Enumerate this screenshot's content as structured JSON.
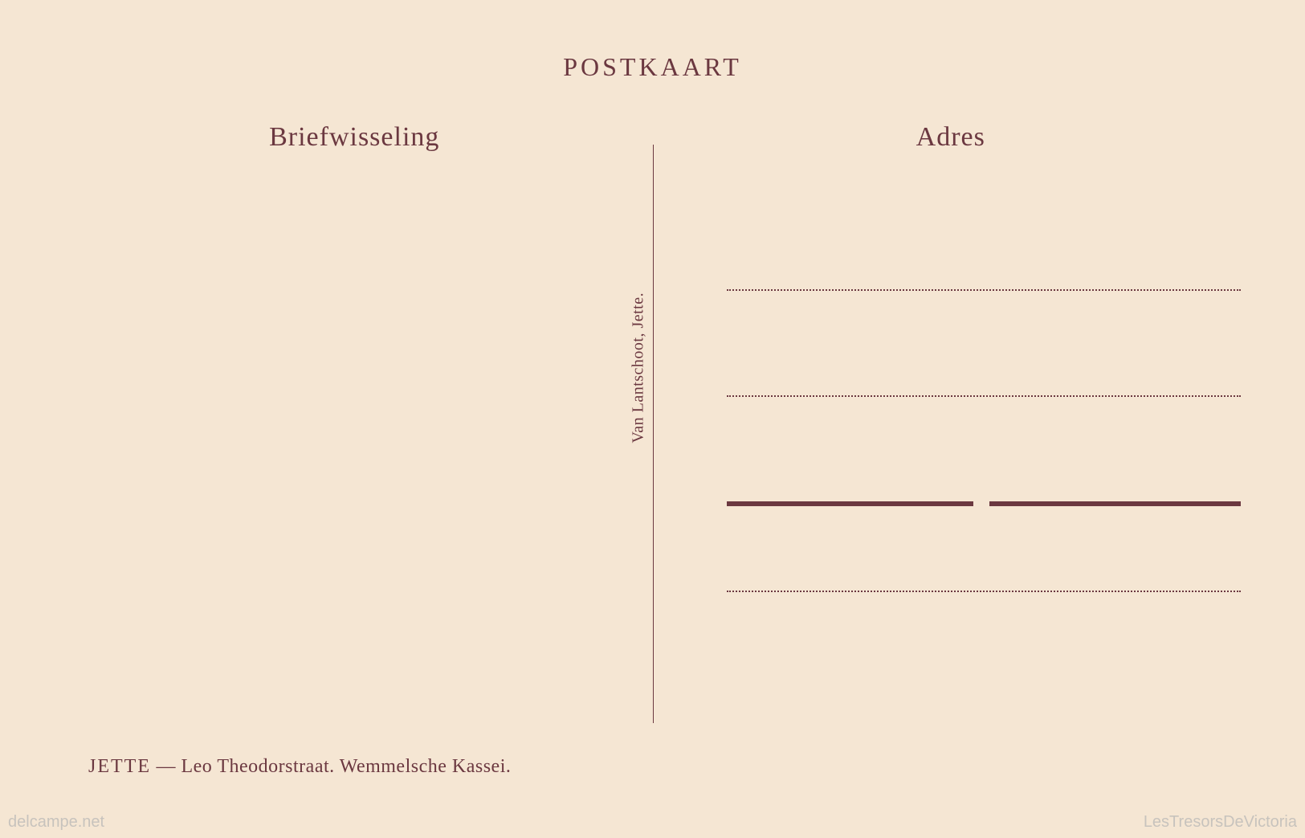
{
  "postcard": {
    "title": "POSTKAART",
    "left_section_header": "Briefwisseling",
    "right_section_header": "Adres",
    "publisher": "Van Lantschoot, Jette.",
    "caption_location": "JETTE",
    "caption_separator": " — ",
    "caption_description": "Leo Theodorstraat. Wemmelsche Kassei."
  },
  "styling": {
    "background_color": "#f5e6d3",
    "text_color": "#6b3840",
    "title_fontsize": 32,
    "header_fontsize": 34,
    "caption_fontsize": 24,
    "publisher_fontsize": 20,
    "address_line_count": 4,
    "address_line_styles": [
      "dotted",
      "dotted",
      "double-solid",
      "dotted"
    ],
    "divider_position_percent": 50
  },
  "watermarks": {
    "left": "delcampe.net",
    "right": "LesTresorsDeVictoria"
  }
}
